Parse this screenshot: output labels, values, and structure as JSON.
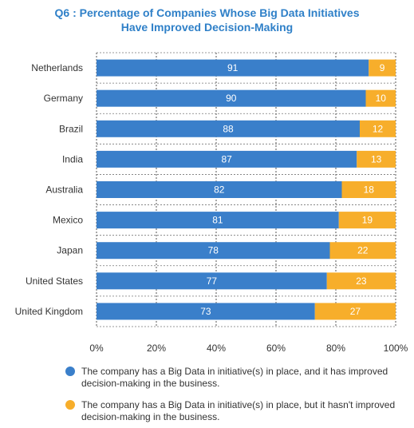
{
  "chart_data": {
    "type": "bar",
    "orientation": "horizontal",
    "stacked": true,
    "title_lines": [
      "Q6 : Percentage of Companies Whose Big Data Initiatives",
      "Have Improved Decision-Making"
    ],
    "categories": [
      "Netherlands",
      "Germany",
      "Brazil",
      "India",
      "Australia",
      "Mexico",
      "Japan",
      "United States",
      "United Kingdom"
    ],
    "series": [
      {
        "values": [
          91,
          90,
          88,
          87,
          82,
          81,
          78,
          77,
          73
        ],
        "color": "#3a7fca"
      },
      {
        "values": [
          9,
          10,
          12,
          13,
          18,
          19,
          22,
          23,
          27
        ],
        "color": "#f7ae2b"
      }
    ],
    "x_ticks": [
      "0%",
      "20%",
      "40%",
      "60%",
      "80%",
      "100%"
    ],
    "xlim": [
      0,
      100
    ],
    "grid": "vertical dashed",
    "legend": {
      "placement": "bottom",
      "entries": [
        {
          "text": "The company has a Big Data in initiative(s) in place, and it has improved decision-making in the business.",
          "color": "#3a7fca"
        },
        {
          "text": "The company has a Big Data in initiative(s) in place, but it hasn't improved decision-making in the business.",
          "color": "#f7ae2b"
        }
      ]
    }
  }
}
